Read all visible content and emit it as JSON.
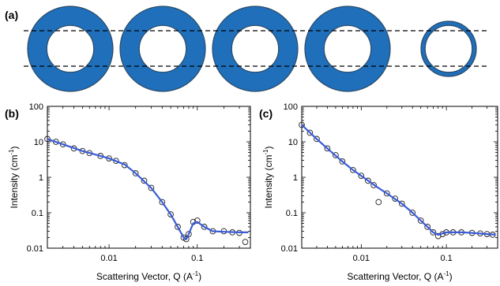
{
  "panel_a": {
    "label": "(a)",
    "ring_fill": "#1f6fba",
    "ring_stroke": "#2b4a66",
    "rings": [
      {
        "shell_fraction": 0.45
      },
      {
        "shell_fraction": 0.45
      },
      {
        "shell_fraction": 0.45
      },
      {
        "shell_fraction": 0.45
      },
      {
        "shell_fraction": 0.15
      }
    ]
  },
  "chart_data": [
    {
      "panel": "(b)",
      "type": "scatter",
      "xscale": "log",
      "yscale": "log",
      "xlim": [
        0.002,
        0.4
      ],
      "ylim": [
        0.01,
        100
      ],
      "xticks": [
        {
          "v": 0.01,
          "label": "0.01"
        },
        {
          "v": 0.1,
          "label": "0.1"
        }
      ],
      "yticks": [
        {
          "v": 0.01,
          "label": "0.01"
        },
        {
          "v": 0.1,
          "label": "0.1"
        },
        {
          "v": 1,
          "label": "1"
        },
        {
          "v": 10,
          "label": "10"
        },
        {
          "v": 100,
          "label": "100"
        }
      ],
      "xlabel": "Scattering Vector, Q (A",
      "xlabel_sup": "-1",
      "ylabel": "Intensity (cm",
      "ylabel_sup": "-1",
      "series": [
        {
          "role": "data",
          "marker": "open-circle",
          "color": "#222222",
          "x": [
            0.002,
            0.0025,
            0.003,
            0.004,
            0.005,
            0.006,
            0.008,
            0.01,
            0.012,
            0.015,
            0.02,
            0.025,
            0.03,
            0.04,
            0.05,
            0.06,
            0.07,
            0.075,
            0.08,
            0.09,
            0.1,
            0.12,
            0.15,
            0.2,
            0.25,
            0.3,
            0.35
          ],
          "y": [
            12,
            10,
            8.5,
            6.5,
            5.5,
            4.8,
            4.0,
            3.4,
            2.9,
            2.2,
            1.3,
            0.8,
            0.5,
            0.2,
            0.09,
            0.04,
            0.02,
            0.018,
            0.025,
            0.055,
            0.06,
            0.04,
            0.03,
            0.03,
            0.028,
            0.027,
            0.015
          ]
        },
        {
          "role": "fit",
          "marker": "line",
          "color": "#3b5bd6",
          "x": [
            0.002,
            0.003,
            0.005,
            0.008,
            0.01,
            0.015,
            0.02,
            0.03,
            0.04,
            0.05,
            0.06,
            0.07,
            0.075,
            0.08,
            0.09,
            0.1,
            0.12,
            0.15,
            0.2,
            0.3,
            0.38
          ],
          "y": [
            12,
            8.5,
            5.5,
            4.0,
            3.4,
            2.3,
            1.3,
            0.5,
            0.2,
            0.09,
            0.04,
            0.02,
            0.018,
            0.025,
            0.05,
            0.055,
            0.04,
            0.03,
            0.029,
            0.028,
            0.028
          ]
        }
      ]
    },
    {
      "panel": "(c)",
      "type": "scatter",
      "xscale": "log",
      "yscale": "log",
      "xlim": [
        0.002,
        0.4
      ],
      "ylim": [
        0.01,
        100
      ],
      "xticks": [
        {
          "v": 0.01,
          "label": "0.01"
        },
        {
          "v": 0.1,
          "label": "0.1"
        }
      ],
      "yticks": [
        {
          "v": 0.01,
          "label": "0.01"
        },
        {
          "v": 0.1,
          "label": "0.1"
        },
        {
          "v": 1,
          "label": "1"
        },
        {
          "v": 10,
          "label": "10"
        },
        {
          "v": 100,
          "label": "100"
        }
      ],
      "xlabel": "Scattering Vector, Q (A",
      "xlabel_sup": "-1",
      "ylabel": "Intensity (cm",
      "ylabel_sup": "-1",
      "series": [
        {
          "role": "data",
          "marker": "open-circle",
          "color": "#222222",
          "x": [
            0.002,
            0.0025,
            0.003,
            0.004,
            0.005,
            0.006,
            0.008,
            0.01,
            0.012,
            0.014,
            0.016,
            0.02,
            0.025,
            0.03,
            0.04,
            0.05,
            0.06,
            0.07,
            0.08,
            0.09,
            0.1,
            0.12,
            0.15,
            0.2,
            0.25,
            0.3,
            0.35
          ],
          "y": [
            30,
            18,
            12,
            6.5,
            4.2,
            2.8,
            1.6,
            1.1,
            0.8,
            0.6,
            0.2,
            0.35,
            0.25,
            0.18,
            0.1,
            0.06,
            0.04,
            0.028,
            0.022,
            0.025,
            0.028,
            0.028,
            0.028,
            0.027,
            0.026,
            0.025,
            0.024
          ]
        },
        {
          "role": "fit",
          "marker": "line",
          "color": "#3b5bd6",
          "x": [
            0.002,
            0.003,
            0.004,
            0.006,
            0.008,
            0.01,
            0.015,
            0.02,
            0.03,
            0.04,
            0.05,
            0.06,
            0.07,
            0.08,
            0.09,
            0.1,
            0.15,
            0.2,
            0.3,
            0.38
          ],
          "y": [
            30,
            12,
            6.5,
            2.8,
            1.6,
            1.1,
            0.55,
            0.35,
            0.18,
            0.1,
            0.06,
            0.04,
            0.028,
            0.024,
            0.026,
            0.028,
            0.028,
            0.027,
            0.025,
            0.024
          ]
        }
      ]
    }
  ]
}
